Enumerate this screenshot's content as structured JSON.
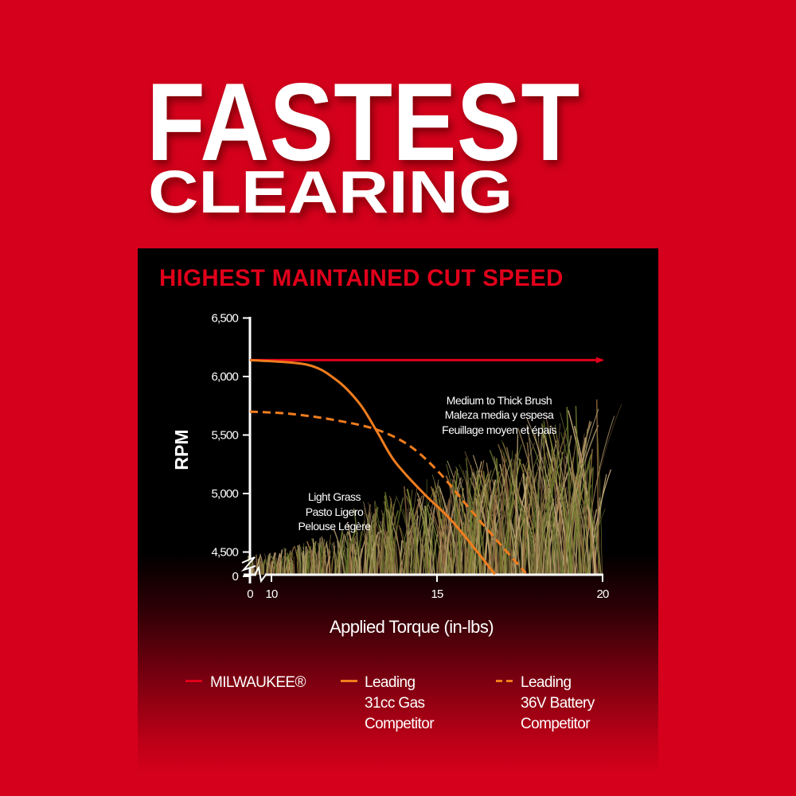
{
  "headline": {
    "line1": "FASTEST",
    "line2": "CLEARING"
  },
  "panel_title": "HIGHEST MAINTAINED CUT SPEED",
  "colors": {
    "background": "#d5001c",
    "milwaukee": "#e0001b",
    "gas": "#f07d1e",
    "battery": "#f07d1e",
    "panel": "#000000",
    "title_red": "#e0001b"
  },
  "chart_data": {
    "type": "line",
    "title": "HIGHEST MAINTAINED CUT SPEED",
    "xlabel": "Applied Torque (in-lbs)",
    "ylabel": "RPM",
    "x_ticks": [
      "0",
      "10",
      "15",
      "20"
    ],
    "x_tick_values": [
      0,
      10,
      15,
      20
    ],
    "y_ticks": [
      "0",
      "4,500",
      "5,000",
      "5,500",
      "6,000",
      "6,500"
    ],
    "y_tick_values": [
      4310,
      4500,
      5000,
      5500,
      6000,
      6500
    ],
    "xlim": [
      0,
      20
    ],
    "ylim": [
      0,
      6500
    ],
    "axis_breaks": {
      "x": [
        0,
        10
      ],
      "y": [
        0,
        4500
      ]
    },
    "grid": false,
    "legend_position": "bottom",
    "series": [
      {
        "name": "MILWAUKEE®",
        "style": "solid",
        "color": "#e0001b",
        "arrow": true,
        "x": [
          0,
          20
        ],
        "y": [
          6140,
          6140
        ]
      },
      {
        "name": "Leading 31cc Gas Competitor",
        "style": "solid",
        "color": "#f07d1e",
        "x": [
          0,
          11.06,
          11.95,
          12.66,
          13.2,
          13.73,
          14.6,
          15.5,
          16.75
        ],
        "y": [
          6140,
          6102,
          5973,
          5769,
          5524,
          5272,
          5000,
          4750,
          4310
        ]
      },
      {
        "name": "Leading 36V Battery Competitor",
        "style": "dashed",
        "color": "#f07d1e",
        "x": [
          0,
          10.6,
          11.95,
          13.2,
          14.17,
          15.05,
          15.94,
          16.83,
          17.68
        ],
        "y": [
          5700,
          5680,
          5626,
          5544,
          5408,
          5184,
          4885,
          4592,
          4320
        ]
      }
    ],
    "annotations": [
      {
        "lines": [
          "Light Grass",
          "Pasto Ligero",
          "Pelouse Légère"
        ]
      },
      {
        "lines": [
          "Medium to Thick Brush",
          "Maleza media y espesa",
          "Feuillage moyen et épais"
        ]
      }
    ]
  },
  "legend": [
    {
      "lines": "MILWAUKEE®"
    },
    {
      "lines": "Leading\n31cc Gas\nCompetitor"
    },
    {
      "lines": "Leading\n36V Battery\nCompetitor"
    }
  ]
}
